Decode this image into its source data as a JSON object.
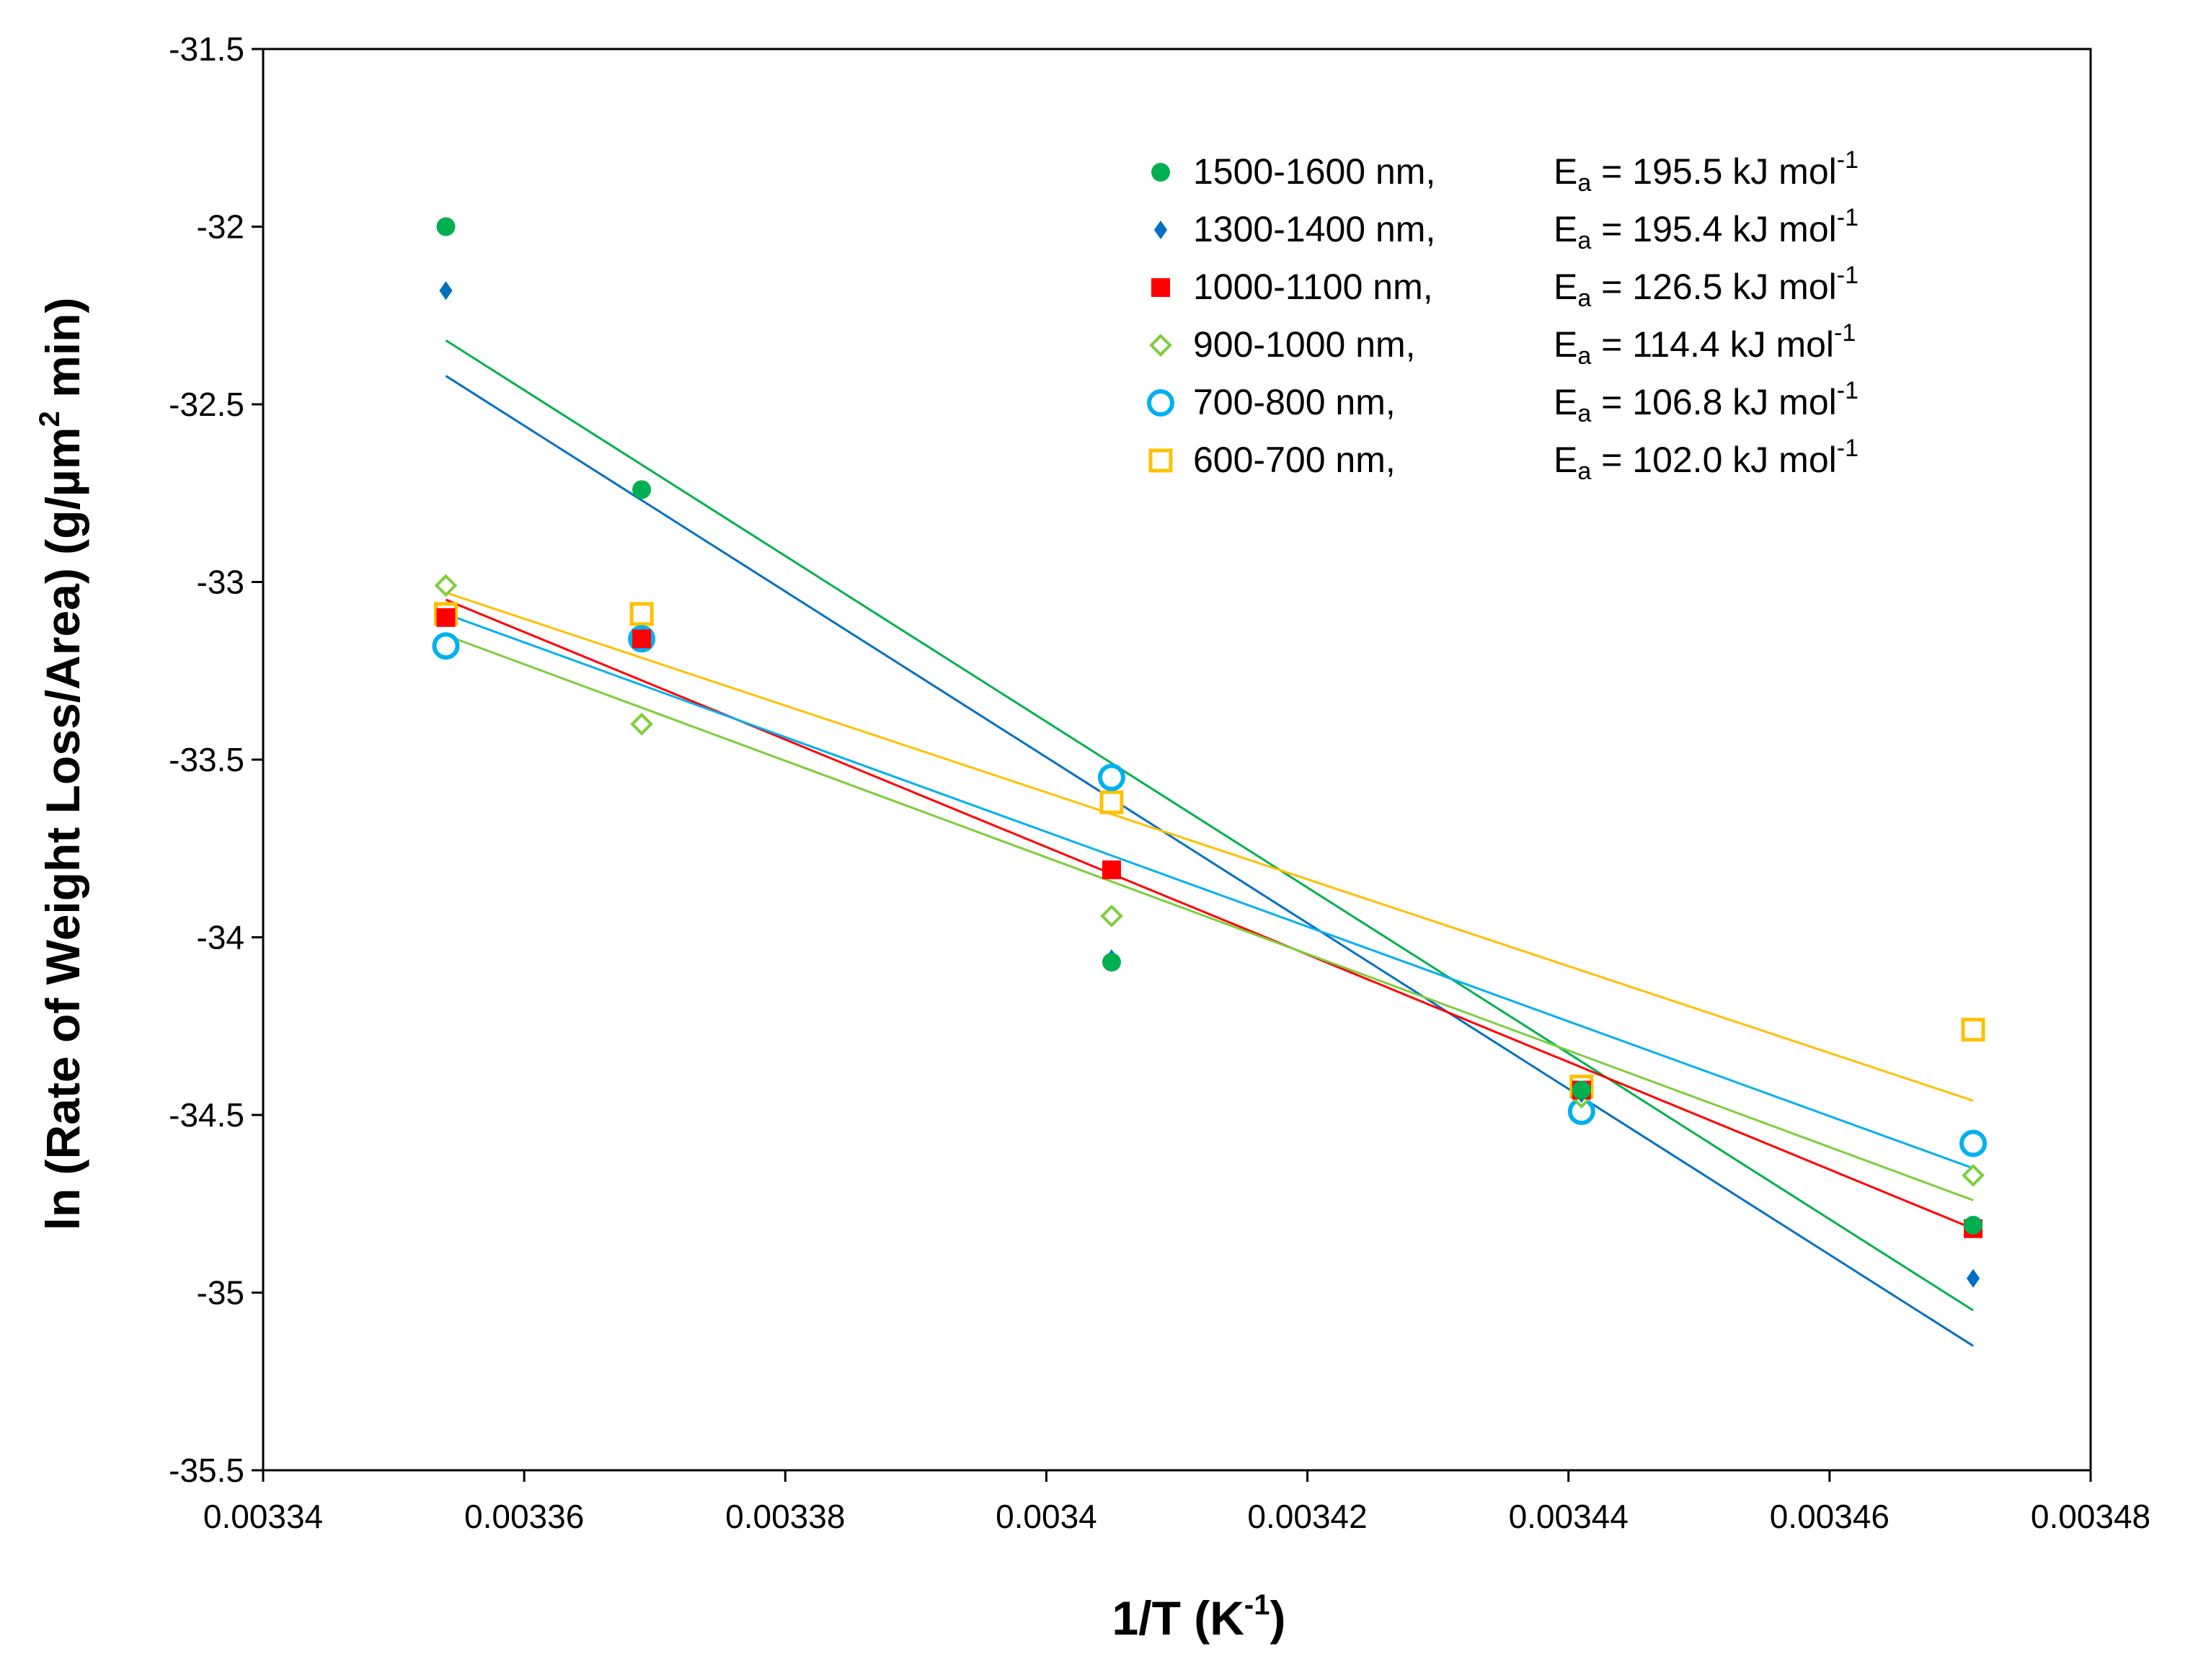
{
  "chart_data": {
    "type": "scatter",
    "title": "",
    "xlabel": {
      "main": "1/T (K",
      "sup": "-1",
      "end": ")"
    },
    "ylabel": {
      "main": "ln (Rate of Weight Loss/Area) (g/µm",
      "sup": "2",
      "end": " min)"
    },
    "xlim": [
      0.00334,
      0.00348
    ],
    "ylim": [
      -35.5,
      -31.5
    ],
    "x_ticks": [
      0.00334,
      0.00336,
      0.00338,
      0.0034,
      0.00342,
      0.00344,
      0.00346,
      0.00348
    ],
    "x_tick_labels": [
      "0.00334",
      "0.00336",
      "0.00338",
      "0.0034",
      "0.00342",
      "0.00344",
      "0.00346",
      "0.00348"
    ],
    "y_ticks": [
      -31.5,
      -32,
      -32.5,
      -33,
      -33.5,
      -34,
      -34.5,
      -35,
      -35.5
    ],
    "y_tick_labels": [
      "-31.5",
      "-32",
      "-32.5",
      "-33",
      "-33.5",
      "-34",
      "-34.5",
      "-35",
      "-35.5"
    ],
    "grid": false,
    "legend_position": "top-right",
    "series": [
      {
        "name": "1500-1600 nm",
        "range_label": "1500-1600  nm,",
        "ea_value": "= 195.5  kJ mol",
        "color": "#00b050",
        "marker": "filled-circle",
        "x": [
          0.003354,
          0.003369,
          0.003405,
          0.003441,
          0.003471
        ],
        "y": [
          -32.0,
          -32.74,
          -34.07,
          -34.43,
          -34.81
        ],
        "fit": {
          "x": [
            0.003354,
            0.003471
          ],
          "y": [
            -32.32,
            -35.05
          ]
        }
      },
      {
        "name": "1300-1400 nm",
        "range_label": "1300-1400  nm,",
        "ea_value": "= 195.4  kJ mol",
        "color": "#0070c0",
        "marker": "filled-diamond",
        "x": [
          0.003354,
          0.003369,
          0.003405,
          0.003441,
          0.003471
        ],
        "y": [
          -32.18,
          -32.74,
          -34.06,
          -34.44,
          -34.96
        ],
        "fit": {
          "x": [
            0.003354,
            0.003471
          ],
          "y": [
            -32.42,
            -35.15
          ]
        }
      },
      {
        "name": "1000-1100 nm",
        "range_label": "1000-1100  nm,",
        "ea_value": "= 126.5  kJ mol",
        "color": "#ff0000",
        "marker": "filled-square",
        "x": [
          0.003354,
          0.003369,
          0.003405,
          0.003441,
          0.003471
        ],
        "y": [
          -33.1,
          -33.16,
          -33.81,
          -34.43,
          -34.82
        ],
        "fit": {
          "x": [
            0.003354,
            0.003471
          ],
          "y": [
            -33.05,
            -34.82
          ]
        }
      },
      {
        "name": "900-1000 nm",
        "range_label": "900-1000  nm,",
        "ea_value": "= 114.4  kJ mol",
        "color": "#7cce3c",
        "marker": "open-diamond",
        "x": [
          0.003354,
          0.003369,
          0.003405,
          0.003441,
          0.003471
        ],
        "y": [
          -33.01,
          -33.4,
          -33.94,
          -34.45,
          -34.67
        ],
        "fit": {
          "x": [
            0.003354,
            0.003471
          ],
          "y": [
            -33.15,
            -34.74
          ]
        }
      },
      {
        "name": "700-800 nm",
        "range_label": "700-800  nm,",
        "ea_value": "= 106.8  kJ mol",
        "color": "#00b0f0",
        "marker": "open-circle",
        "x": [
          0.003354,
          0.003369,
          0.003405,
          0.003441,
          0.003471
        ],
        "y": [
          -33.18,
          -33.16,
          -33.55,
          -34.49,
          -34.58
        ],
        "fit": {
          "x": [
            0.003354,
            0.003471
          ],
          "y": [
            -33.09,
            -34.65
          ]
        }
      },
      {
        "name": "600-700 nm",
        "range_label": "600-700  nm,",
        "ea_value": "= 102.0  kJ mol",
        "color": "#ffc000",
        "marker": "open-square",
        "x": [
          0.003354,
          0.003369,
          0.003405,
          0.003441,
          0.003471
        ],
        "y": [
          -33.09,
          -33.09,
          -33.62,
          -34.42,
          -34.26
        ],
        "fit": {
          "x": [
            0.003354,
            0.003471
          ],
          "y": [
            -33.03,
            -34.46
          ]
        }
      }
    ],
    "legend_ea_symbol": {
      "letter": "E",
      "sub": "a",
      "sup": "-1"
    }
  }
}
